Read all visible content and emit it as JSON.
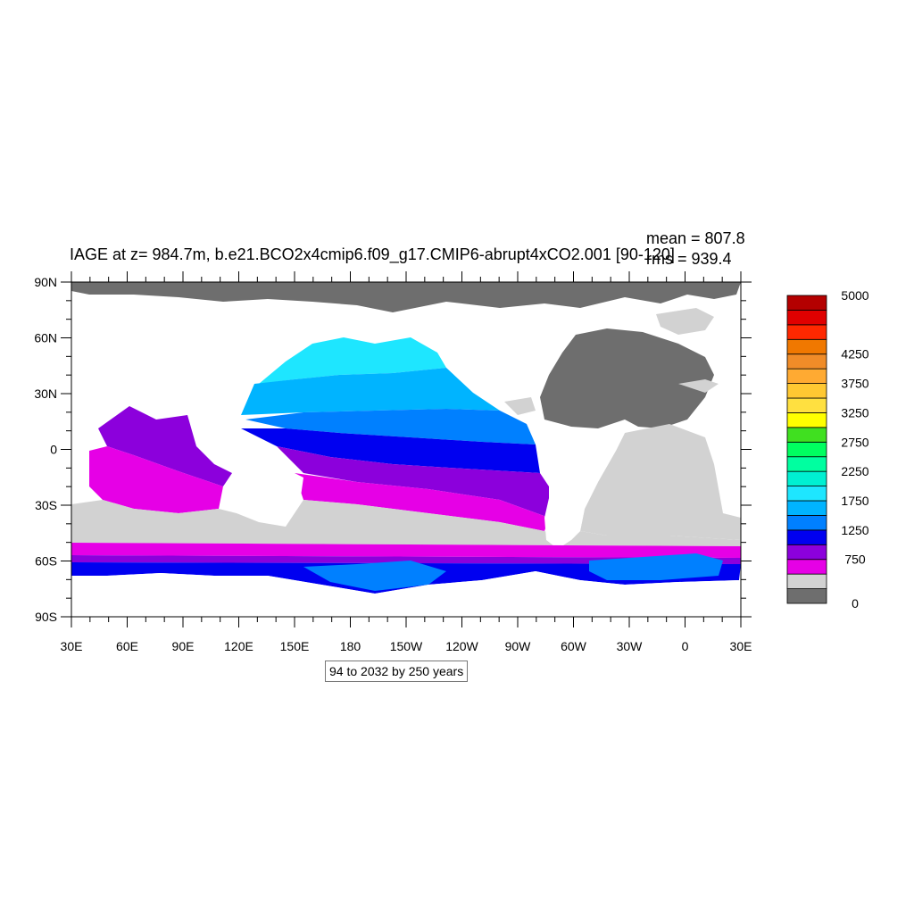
{
  "title": "IAGE at z= 984.7m, b.e21.BCO2x4cmip6.f09_g17.CMIP6-abrupt4xCO2.001 [90-120]",
  "stats": {
    "mean": "mean = 807.8",
    "rms": "rms = 939.4"
  },
  "subtitle": "94 to 2032 by 250 years",
  "axes": {
    "lat_labels": [
      "90N",
      "60N",
      "30N",
      "0",
      "30S",
      "60S",
      "90S"
    ],
    "lon_labels": [
      "30E",
      "60E",
      "90E",
      "120E",
      "150E",
      "180",
      "150W",
      "120W",
      "90W",
      "60W",
      "30W",
      "0",
      "30E"
    ]
  },
  "colorbar": {
    "colors": [
      "#6e6e6e",
      "#d2d2d2",
      "#e600e6",
      "#8c00dc",
      "#0000f0",
      "#0080ff",
      "#00b4ff",
      "#1ee6ff",
      "#00f0d2",
      "#00ffa0",
      "#00ff60",
      "#40e020",
      "#ffff00",
      "#ffe040",
      "#ffc832",
      "#ffaa32",
      "#f08c28",
      "#f07800",
      "#ff2800",
      "#e00000",
      "#b40000"
    ],
    "labels": [
      {
        "text": "0",
        "index": 0
      },
      {
        "text": "750",
        "index": 3
      },
      {
        "text": "1250",
        "index": 5
      },
      {
        "text": "1750",
        "index": 7
      },
      {
        "text": "2250",
        "index": 9
      },
      {
        "text": "2750",
        "index": 11
      },
      {
        "text": "3250",
        "index": 13
      },
      {
        "text": "3750",
        "index": 15
      },
      {
        "text": "4250",
        "index": 17
      },
      {
        "text": "5000",
        "index": 20
      }
    ]
  }
}
